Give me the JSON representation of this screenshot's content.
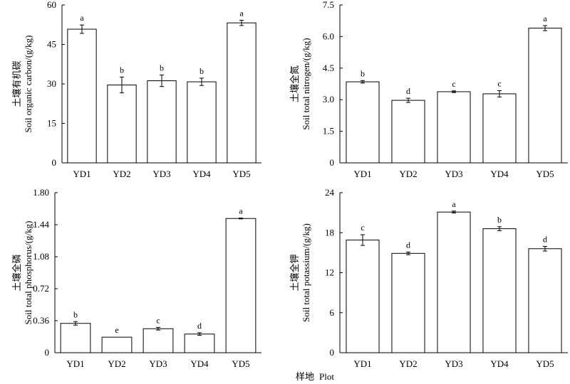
{
  "figure": {
    "x_title_cn": "样地",
    "x_title_en": "Plot"
  },
  "chart_data": [
    {
      "type": "bar",
      "ylabel_cn": "土壤有机碳",
      "ylabel_en": "Soil organic carbon/(g/kg)",
      "categories": [
        "YD1",
        "YD2",
        "YD3",
        "YD4",
        "YD5"
      ],
      "values": [
        50.8,
        29.6,
        31.2,
        30.8,
        53.2
      ],
      "errors": [
        1.6,
        3.0,
        2.2,
        1.4,
        1.0
      ],
      "letters": [
        "a",
        "b",
        "b",
        "b",
        "a"
      ],
      "ylim": [
        0,
        60
      ],
      "yticks": [
        "0",
        "15",
        "30",
        "45",
        "60"
      ],
      "grid": false
    },
    {
      "type": "bar",
      "ylabel_cn": "土壤全氮",
      "ylabel_en": "Soil total nitrogen/(g/kg)",
      "categories": [
        "YD1",
        "YD2",
        "YD3",
        "YD4",
        "YD5"
      ],
      "values": [
        3.85,
        2.97,
        3.38,
        3.28,
        6.4
      ],
      "errors": [
        0.06,
        0.1,
        0.04,
        0.15,
        0.12
      ],
      "letters": [
        "b",
        "d",
        "c",
        "c",
        "a"
      ],
      "ylim": [
        0,
        7.5
      ],
      "yticks": [
        "0",
        "1.5",
        "3.0",
        "4.5",
        "6.0",
        "7.5"
      ],
      "grid": false
    },
    {
      "type": "bar",
      "ylabel_cn": "土壤全磷",
      "ylabel_en": "Soil total phosphorus/(g/kg)",
      "categories": [
        "YD1",
        "YD2",
        "YD3",
        "YD4",
        "YD5"
      ],
      "values": [
        0.33,
        0.175,
        0.27,
        0.21,
        1.51
      ],
      "errors": [
        0.02,
        0.0,
        0.015,
        0.015,
        0.005
      ],
      "letters": [
        "b",
        "e",
        "c",
        "d",
        "a"
      ],
      "ylim": [
        0,
        1.8
      ],
      "yticks": [
        "0",
        "0.36",
        "0.72",
        "1.08",
        "1.44",
        "1.80"
      ],
      "grid": false
    },
    {
      "type": "bar",
      "ylabel_cn": "土壤全钾",
      "ylabel_en": "Soil total potassium/(g/kg)",
      "categories": [
        "YD1",
        "YD2",
        "YD3",
        "YD4",
        "YD5"
      ],
      "values": [
        16.9,
        14.9,
        21.1,
        18.6,
        15.6
      ],
      "errors": [
        0.8,
        0.2,
        0.15,
        0.3,
        0.35
      ],
      "letters": [
        "c",
        "d",
        "a",
        "b",
        "d"
      ],
      "ylim": [
        0,
        24
      ],
      "yticks": [
        "0",
        "6",
        "12",
        "18",
        "24"
      ],
      "grid": false
    }
  ]
}
